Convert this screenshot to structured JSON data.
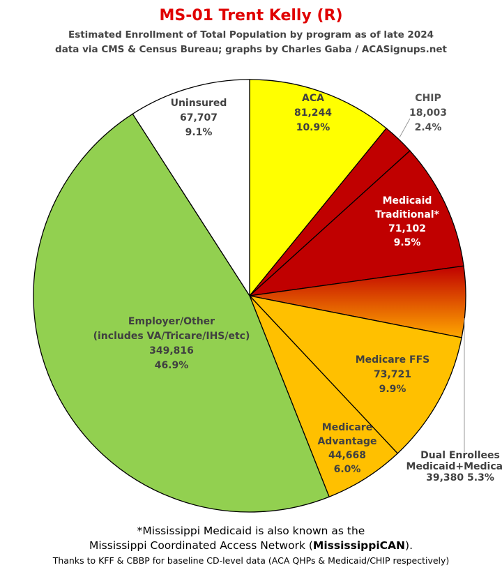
{
  "chart_data": {
    "type": "pie",
    "title": "MS-01 Trent Kelly (R)",
    "subtitle_lines": [
      "Estimated Enrollment of Total Population by program as of late 2024",
      "data via CMS & Census Bureau; graphs by Charles Gaba / ACASignups.net"
    ],
    "slices": [
      {
        "lines": [
          "ACA"
        ],
        "value": "81,244",
        "percent": "10.9%",
        "pct": 10.9,
        "color": "#ffff00",
        "text_color": "#404040"
      },
      {
        "lines": [
          "CHIP"
        ],
        "value": "18,003",
        "percent": "2.4%",
        "pct": 2.4,
        "color": "#c00000",
        "text_color": "#505050"
      },
      {
        "lines": [
          "Medicaid",
          "Traditional*"
        ],
        "value": "71,102",
        "percent": "9.5%",
        "pct": 9.5,
        "color": "#c00000",
        "text_color": "#ffffff"
      },
      {
        "lines": [
          "Dual Enrollees",
          "Medicaid+Medicare"
        ],
        "value": "39,380",
        "percent": "5.3%",
        "pct": 5.3,
        "color": "gradient:#c00000-#ffa000",
        "text_color": "#404040"
      },
      {
        "lines": [
          "Medicare FFS"
        ],
        "value": "73,721",
        "percent": "9.9%",
        "pct": 9.9,
        "color": "#ffc000",
        "text_color": "#404040"
      },
      {
        "lines": [
          "Medicare",
          "Advantage"
        ],
        "value": "44,668",
        "percent": "6.0%",
        "pct": 6.0,
        "color": "#ffc000",
        "text_color": "#404040"
      },
      {
        "lines": [
          "Employer/Other",
          "(includes VA/Tricare/IHS/etc)"
        ],
        "value": "349,816",
        "percent": "46.9%",
        "pct": 46.9,
        "color": "#92d050",
        "text_color": "#404040"
      },
      {
        "lines": [
          "Uninsured"
        ],
        "value": "67,707",
        "percent": "9.1%",
        "pct": 9.1,
        "color": "#ffffff",
        "text_color": "#404040"
      }
    ]
  },
  "footer": {
    "line1": "*Mississippi Medicaid is also known as the",
    "line2_prefix": "Mississippi Coordinated Access Network (",
    "line2_bold": "MississippiCAN",
    "line2_suffix": ").",
    "line3": "Thanks to KFF & CBBP for baseline CD-level data (ACA QHPs & Medicaid/CHIP respectively)"
  }
}
